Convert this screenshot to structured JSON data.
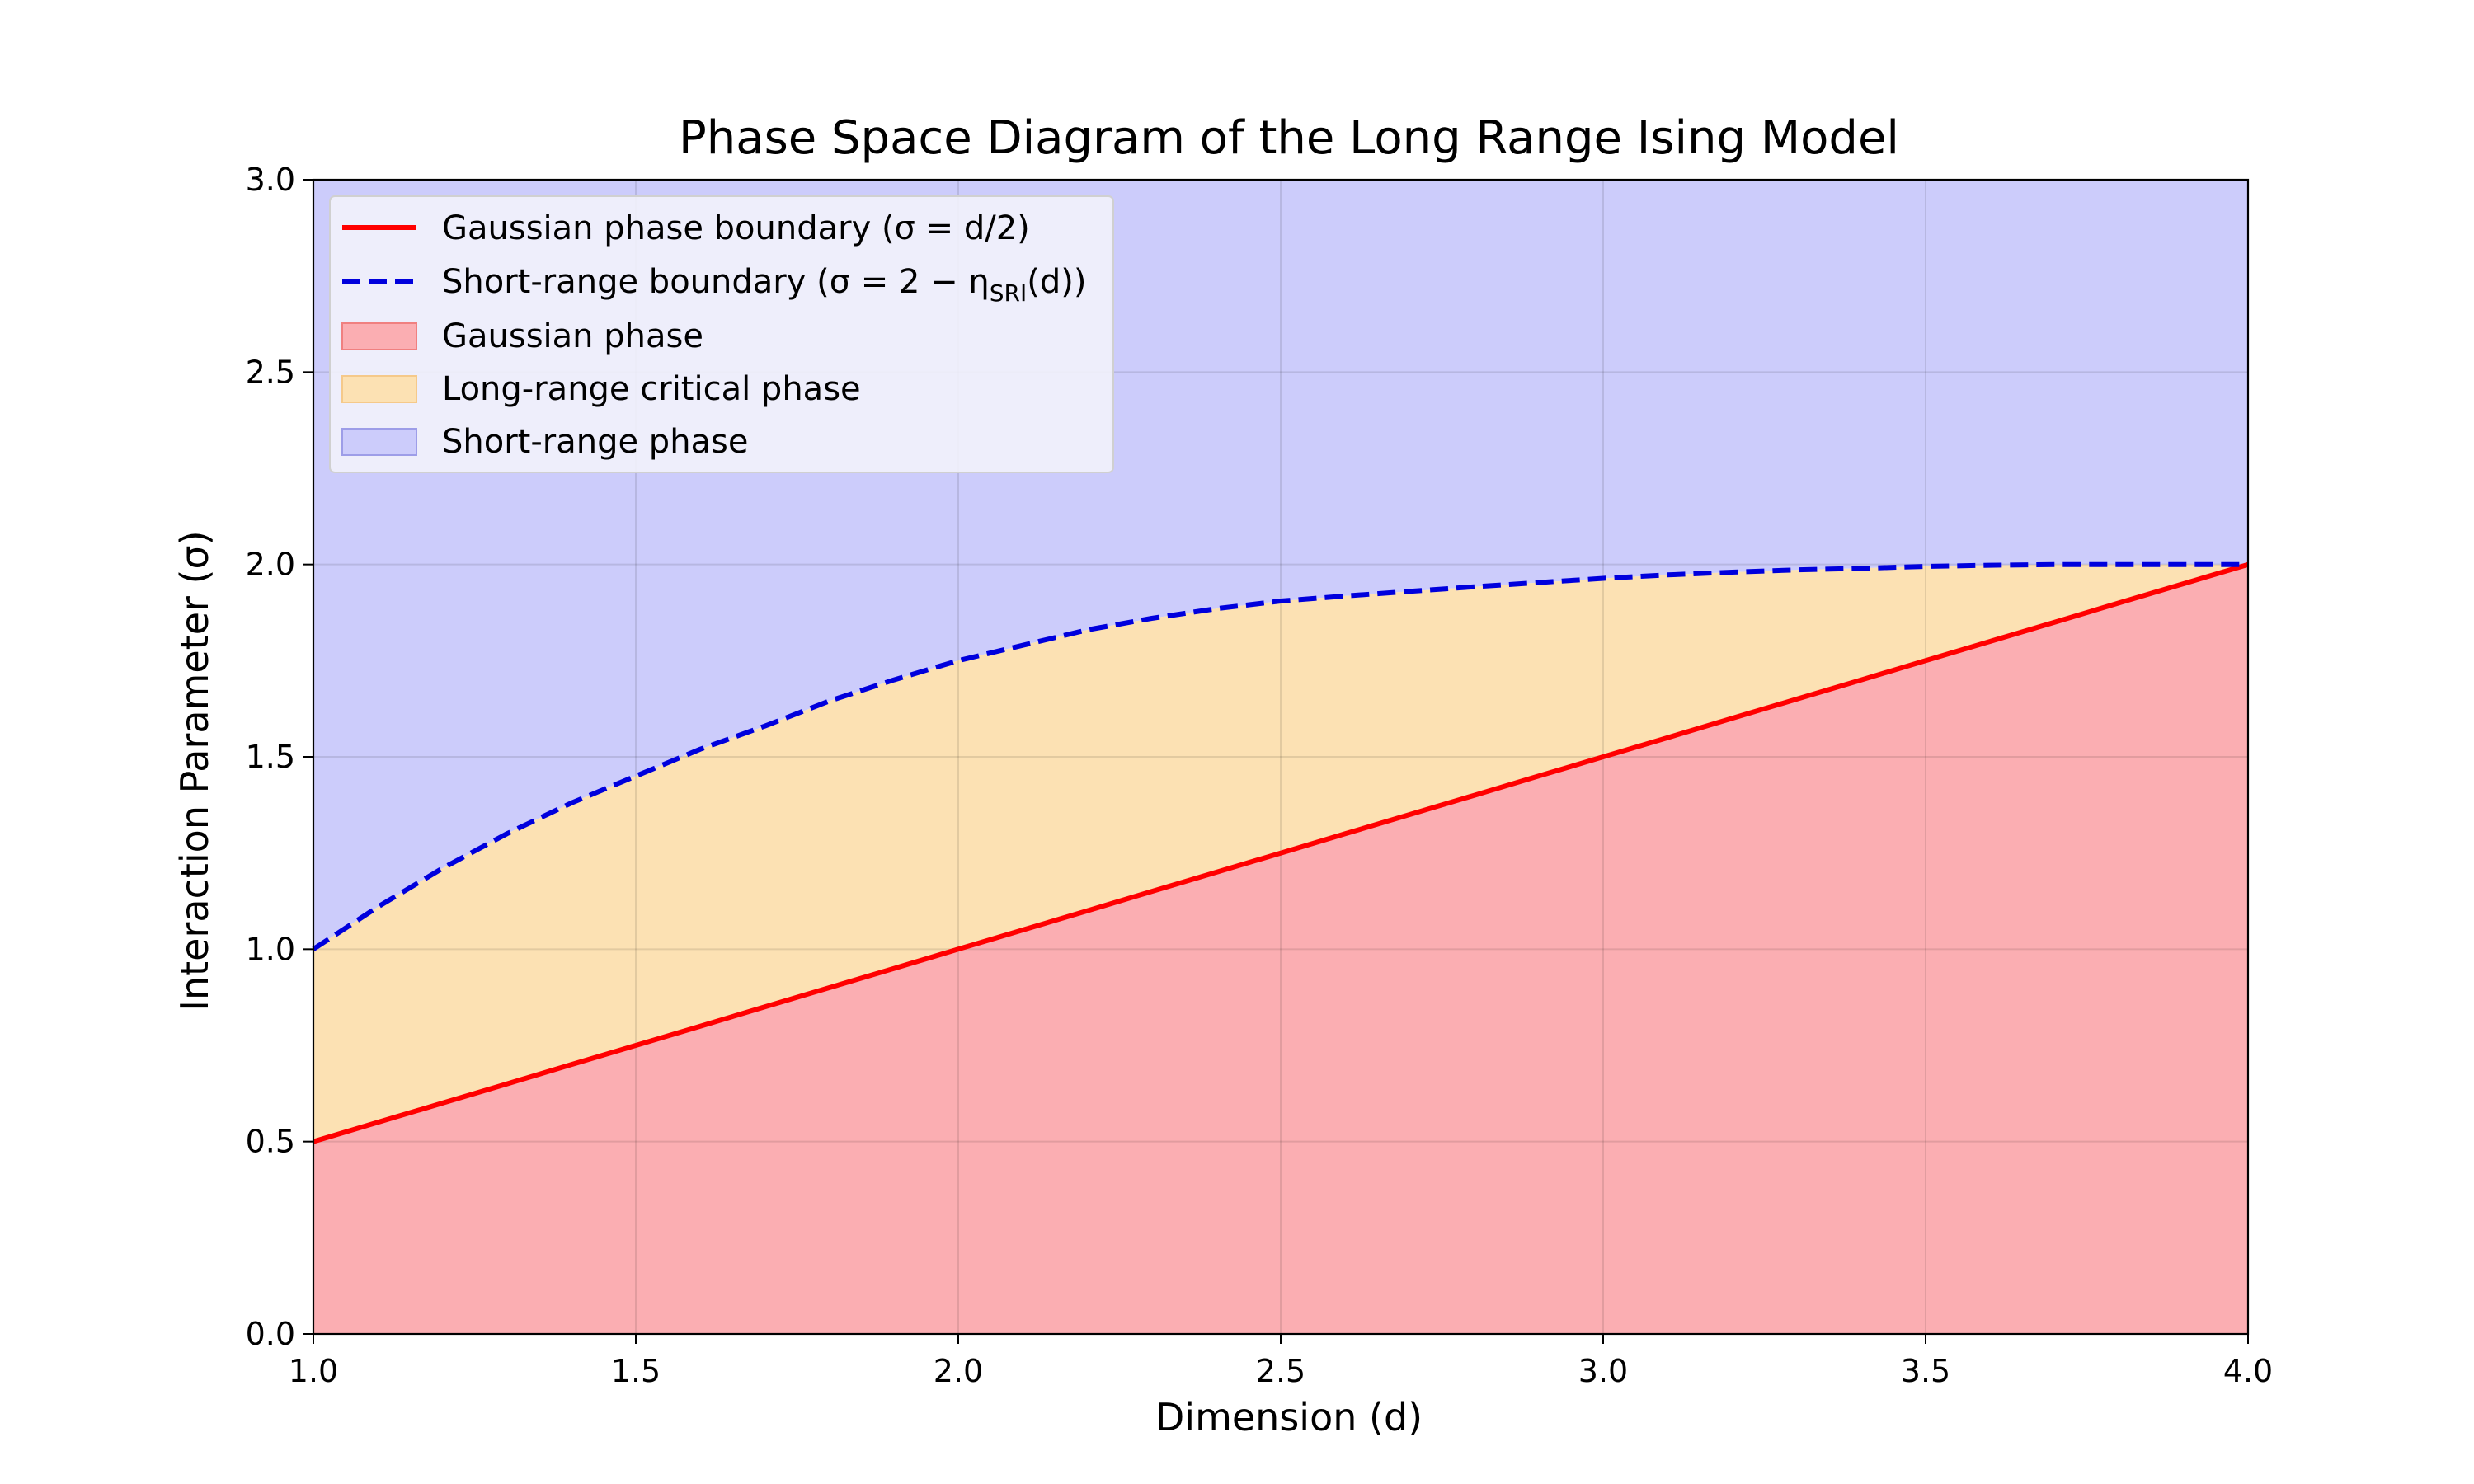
{
  "chart_data": {
    "type": "area",
    "title": "Phase Space Diagram of the Long Range Ising Model",
    "xlabel": "Dimension (d)",
    "ylabel": "Interaction Parameter (σ)",
    "xlim": [
      1.0,
      4.0
    ],
    "ylim": [
      0.0,
      3.0
    ],
    "xticks": [
      "1.0",
      "1.5",
      "2.0",
      "2.5",
      "3.0",
      "3.5",
      "4.0"
    ],
    "yticks": [
      "0.0",
      "0.5",
      "1.0",
      "1.5",
      "2.0",
      "2.5",
      "3.0"
    ],
    "grid": true,
    "legend_position": "top-left",
    "series": [
      {
        "name": "Gaussian phase boundary (σ = d/2)",
        "style": "solid",
        "color": "#ff0000",
        "x": [
          1.0,
          4.0
        ],
        "y": [
          0.5,
          2.0
        ]
      },
      {
        "name": "Short-range boundary (σ = 2 − η_SRI(d))",
        "style": "dashed",
        "color": "#0000dd",
        "x": [
          1.0,
          1.1,
          1.2,
          1.3,
          1.4,
          1.5,
          1.6,
          1.7,
          1.8,
          1.9,
          2.0,
          2.1,
          2.2,
          2.3,
          2.4,
          2.5,
          2.6,
          2.7,
          2.8,
          2.9,
          3.0,
          3.1,
          3.2,
          3.3,
          3.4,
          3.5,
          3.6,
          3.7,
          3.8,
          3.9,
          4.0
        ],
        "y": [
          1.0,
          1.11,
          1.21,
          1.3,
          1.38,
          1.45,
          1.52,
          1.58,
          1.645,
          1.7,
          1.75,
          1.79,
          1.83,
          1.86,
          1.885,
          1.905,
          1.918,
          1.93,
          1.942,
          1.953,
          1.964,
          1.973,
          1.98,
          1.986,
          1.99,
          1.995,
          1.998,
          2.0,
          2.0,
          2.0,
          2.0
        ]
      }
    ],
    "regions": [
      {
        "name": "Gaussian phase",
        "color": "#fbaeb2",
        "edge": "#f08080",
        "between": [
          "0",
          "Gaussian phase boundary"
        ]
      },
      {
        "name": "Long-range critical phase",
        "color": "#fce1b3",
        "edge": "#f5c98a",
        "between": [
          "Gaussian phase boundary",
          "Short-range boundary"
        ]
      },
      {
        "name": "Short-range phase",
        "color": "#ccccfb",
        "edge": "#9d9de8",
        "between": [
          "Short-range boundary",
          "3.0"
        ]
      }
    ]
  },
  "legend": {
    "gaussian_boundary": "Gaussian phase boundary (σ = d/2)",
    "short_range_boundary": "Short-range boundary (σ = 2 − η",
    "short_range_sub": "SRI",
    "short_range_tail": "(d))",
    "gaussian_phase": "Gaussian phase",
    "long_range_phase": "Long-range critical phase",
    "short_range_phase": "Short-range phase"
  }
}
